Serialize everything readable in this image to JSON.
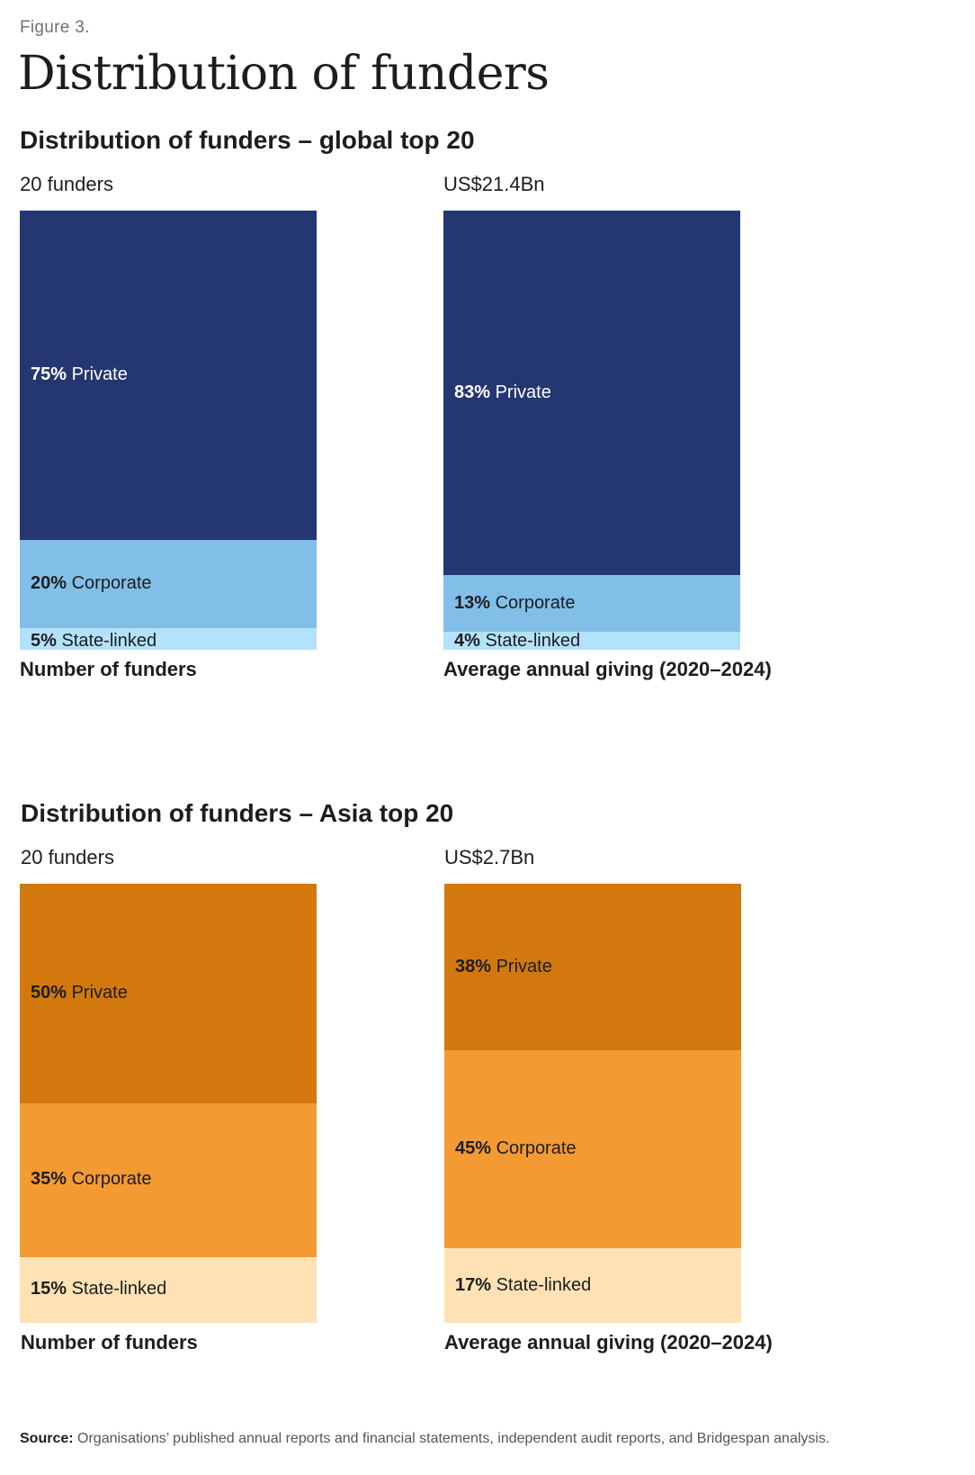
{
  "figure_label": "Figure 3.",
  "title": "Distribution of funders",
  "colors": {
    "private_global": "#253771",
    "corporate_global": "#82bfe8",
    "state_global": "#b3e2fb",
    "private_asia": "#d2780e",
    "corporate_asia": "#f49a33",
    "state_asia": "#fee2b4",
    "label_light": "#ffffff",
    "label_dark": "#1d1d1f"
  },
  "chart_data": [
    {
      "type": "bar",
      "panel": "global",
      "section_title": "Distribution of funders – global top 20",
      "top_label": "20 funders",
      "bottom_label": "Number of funders",
      "stacked": true,
      "categories": [
        "Number of funders"
      ],
      "series": [
        {
          "name": "Private",
          "value": 75,
          "pct_label": "75%",
          "color": "#253771",
          "label_color": "#ffffff"
        },
        {
          "name": "Corporate",
          "value": 20,
          "pct_label": "20%",
          "color": "#82bfe8",
          "label_color": "#1d1d1f"
        },
        {
          "name": "State-linked",
          "value": 5,
          "pct_label": "5%",
          "color": "#b3e2fb",
          "label_color": "#1d1d1f"
        }
      ]
    },
    {
      "type": "bar",
      "panel": "global",
      "top_label": "US$21.4Bn",
      "bottom_label": "Average annual giving (2020–2024)",
      "stacked": true,
      "categories": [
        "Average annual giving (2020–2024)"
      ],
      "series": [
        {
          "name": "Private",
          "value": 83,
          "pct_label": "83%",
          "color": "#253771",
          "label_color": "#ffffff"
        },
        {
          "name": "Corporate",
          "value": 13,
          "pct_label": "13%",
          "color": "#82bfe8",
          "label_color": "#1d1d1f"
        },
        {
          "name": "State-linked",
          "value": 4,
          "pct_label": "4%",
          "color": "#b3e2fb",
          "label_color": "#1d1d1f"
        }
      ]
    },
    {
      "type": "bar",
      "panel": "asia",
      "section_title": "Distribution of funders – Asia top 20",
      "top_label": "20 funders",
      "bottom_label": "Number of funders",
      "stacked": true,
      "categories": [
        "Number of funders"
      ],
      "series": [
        {
          "name": "Private",
          "value": 50,
          "pct_label": "50%",
          "color": "#d2780e",
          "label_color": "#1d1d1f"
        },
        {
          "name": "Corporate",
          "value": 35,
          "pct_label": "35%",
          "color": "#f49a33",
          "label_color": "#1d1d1f"
        },
        {
          "name": "State-linked",
          "value": 15,
          "pct_label": "15%",
          "color": "#fee2b4",
          "label_color": "#1d1d1f"
        }
      ]
    },
    {
      "type": "bar",
      "panel": "asia",
      "top_label": "US$2.7Bn",
      "bottom_label": "Average annual giving (2020–2024)",
      "stacked": true,
      "categories": [
        "Average annual giving (2020–2024)"
      ],
      "series": [
        {
          "name": "Private",
          "value": 38,
          "pct_label": "38%",
          "color": "#d2780e",
          "label_color": "#1d1d1f"
        },
        {
          "name": "Corporate",
          "value": 45,
          "pct_label": "45%",
          "color": "#f49a33",
          "label_color": "#1d1d1f"
        },
        {
          "name": "State-linked",
          "value": 17,
          "pct_label": "17%",
          "color": "#fee2b4",
          "label_color": "#1d1d1f"
        }
      ]
    }
  ],
  "source": {
    "key": "Source:",
    "text": " Organisations’ published annual reports and financial statements, independent audit reports, and Bridgespan analysis."
  }
}
